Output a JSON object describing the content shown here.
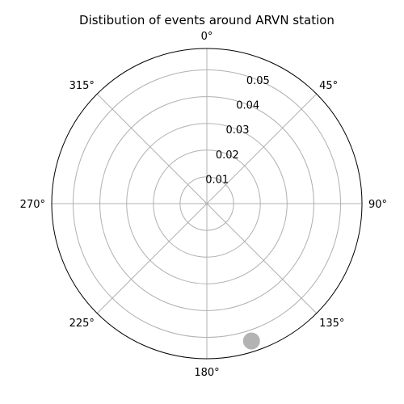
{
  "chart_data": {
    "type": "scatter",
    "projection": "polar",
    "title": "Distibution of events around ARVN station",
    "theta_zero_location": "N",
    "theta_direction": "clockwise",
    "theta_ticks": [
      "0°",
      "45°",
      "90°",
      "135°",
      "180°",
      "225°",
      "270°",
      "315°"
    ],
    "theta_tick_values": [
      0,
      45,
      90,
      135,
      180,
      225,
      270,
      315
    ],
    "r_ticks": [
      "0.01",
      "0.02",
      "0.03",
      "0.04",
      "0.05"
    ],
    "r_tick_values": [
      0.01,
      0.02,
      0.03,
      0.04,
      0.05
    ],
    "rlim": [
      0,
      0.058
    ],
    "grid": true,
    "points": [
      {
        "theta_deg": 162,
        "r": 0.054
      }
    ],
    "point_color": "#808080"
  }
}
